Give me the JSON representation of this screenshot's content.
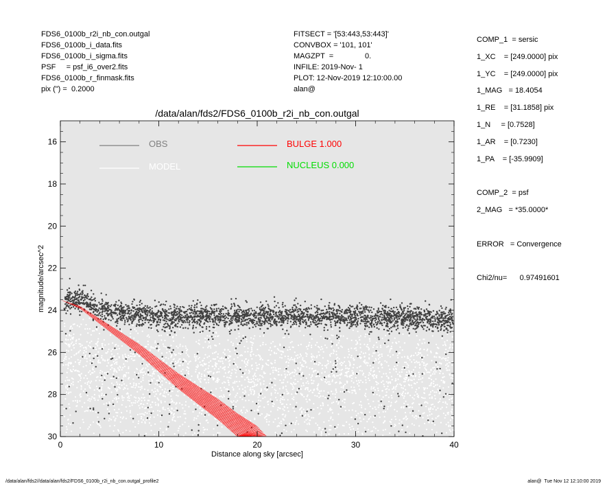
{
  "header": {
    "left": [
      "FDS6_0100b_r2i_nb_con.outgal",
      "FDS6_0100b_i_data.fits",
      "FDS6_0100b_i_sigma.fits",
      "PSF     = psf_i6_over2.fits",
      "FDS6_0100b_r_finmask.fits",
      "pix (\") =  0.2000"
    ],
    "middle": [
      "FITSECT = '[53:443,53:443]'",
      "CONVBOX = '101, 101'",
      "MAGZPT  =               0.",
      "INFILE: 2019-Nov- 1",
      "PLOT: 12-Nov-2019 12:10:00.00",
      "alan@"
    ]
  },
  "params": [
    "COMP_1  = sersic",
    "1_XC    = [249.0000] pix",
    "1_YC    = [249.0000] pix",
    "1_MAG   = 18.4054",
    "1_RE    = [31.1858] pix",
    "1_N     = [0.7528]",
    "1_AR    = [0.7230]",
    "1_PA    = [-35.9909]",
    "",
    "COMP_2  = psf",
    "2_MAG   = *35.0000*",
    "",
    "ERROR   = Convergence",
    "",
    "Chi2/nu=      0.97491601"
  ],
  "footer": {
    "left": "/data/alan/fds2//data/alan/fds2/FDS6_0100b_r2i_nb_con.outgal_profile2",
    "right": "alan@  Tue Nov 12 12:10:00 2019"
  },
  "colors": {
    "plot_bg": "#e6e6e6",
    "obs": "#808080",
    "model": "#ffffff",
    "bulge": "#ff0000",
    "nucleus": "#00dd00",
    "obs_points": "#404040"
  },
  "chart_data": {
    "type": "scatter",
    "title": "/data/alan/fds2/FDS6_0100b_r2i_nb_con.outgal",
    "xlabel": "Distance along sky [arcsec]",
    "ylabel": "magnitude/arcsec^2",
    "xlim": [
      0,
      40
    ],
    "ylim": [
      30,
      15
    ],
    "y_inverted": true,
    "xticks": [
      0,
      10,
      20,
      30,
      40
    ],
    "yticks": [
      16,
      18,
      20,
      22,
      24,
      26,
      28,
      30
    ],
    "grid": false,
    "legend": [
      {
        "label": "OBS",
        "color": "#808080"
      },
      {
        "label": "MODEL",
        "color": "#ffffff"
      },
      {
        "label": "BULGE  1.000",
        "color": "#ff0000"
      },
      {
        "label": "NUCLEUS  0.000",
        "color": "#00dd00"
      }
    ],
    "series": [
      {
        "name": "OBS",
        "x": [
          0.5,
          1,
          2,
          3,
          4,
          5,
          6,
          8,
          10,
          15,
          20,
          25,
          30,
          35,
          40
        ],
        "y": [
          23.6,
          23.5,
          23.5,
          23.7,
          23.9,
          24.0,
          24.1,
          24.2,
          24.3,
          24.3,
          24.3,
          24.3,
          24.3,
          24.3,
          24.5
        ]
      },
      {
        "name": "BULGE  1.000",
        "x": [
          0,
          2,
          4,
          6,
          8,
          10,
          12,
          14,
          16,
          18,
          20,
          21
        ],
        "y": [
          23.5,
          23.8,
          24.4,
          25.0,
          25.6,
          26.3,
          27.0,
          27.6,
          28.2,
          28.9,
          29.5,
          30.0
        ]
      }
    ]
  }
}
